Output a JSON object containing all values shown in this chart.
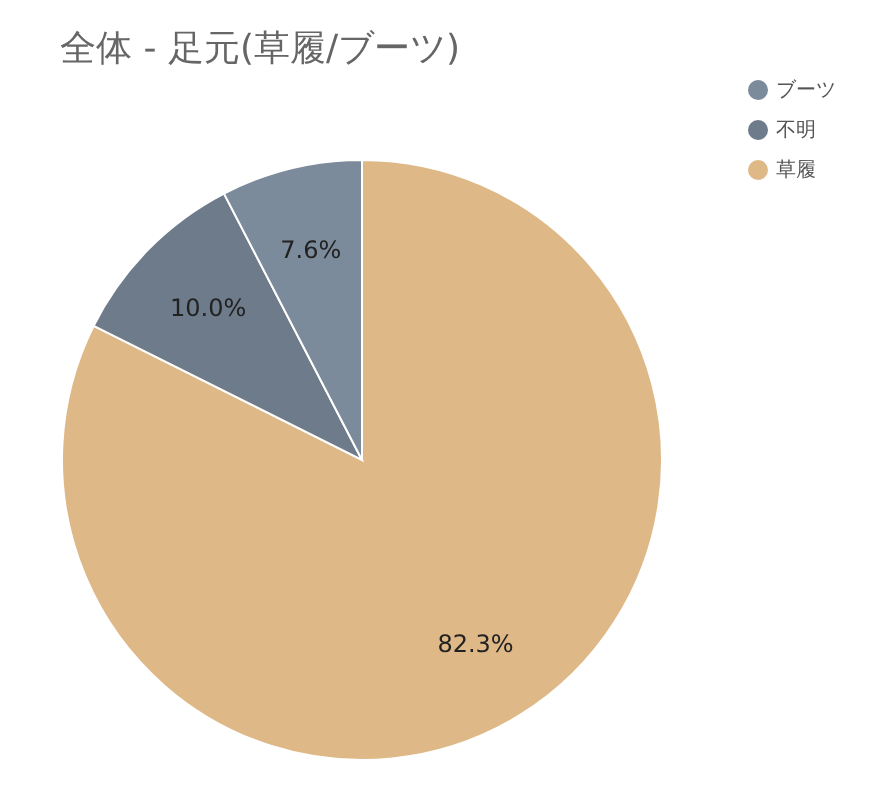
{
  "chart_data": {
    "type": "pie",
    "title": "全体 - 足元(草履/ブーツ)",
    "categories": [
      "草履",
      "不明",
      "ブーツ"
    ],
    "values": [
      82.3,
      10.0,
      7.6
    ],
    "colors": [
      "#dfb887",
      "#6e7b8b",
      "#7b8b9b"
    ],
    "value_labels": [
      "82.3%",
      "10.0%",
      "7.6%"
    ],
    "legend": "top right"
  }
}
